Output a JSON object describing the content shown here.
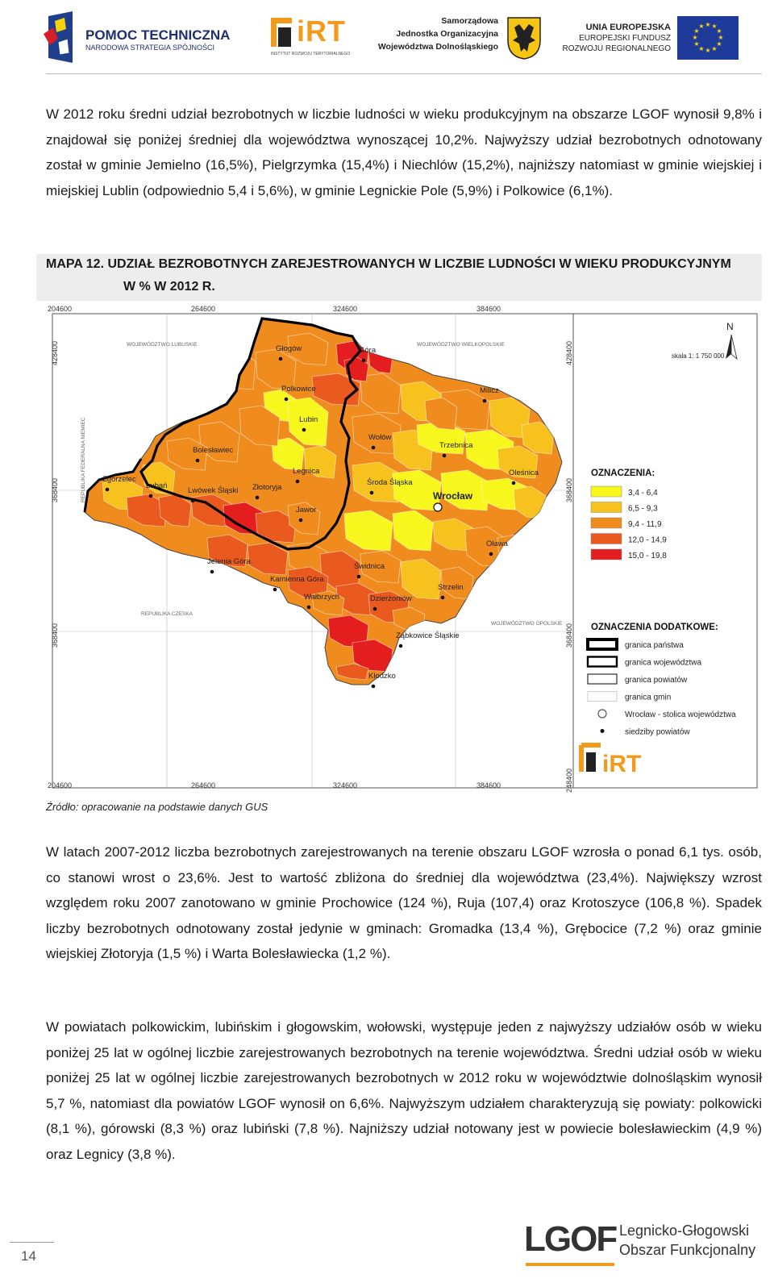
{
  "header": {
    "logo1_title": "POMOC TECHNICZNA",
    "logo1_sub": "NARODOWA STRATEGIA SPÓJNOŚCI",
    "logo2_text": "iRT",
    "logo2_sub": "INSTYTUT ROZWOJU TERYTORIALNEGO",
    "logo3_line1": "Samorządowa",
    "logo3_line2": "Jednostka Organizacyjna",
    "logo3_line3": "Województwa Dolnośląskiego",
    "logo4_line1": "UNIA EUROPEJSKA",
    "logo4_line2": "EUROPEJSKI FUNDUSZ",
    "logo4_line3": "ROZWOJU REGIONALNEGO"
  },
  "paragraph1": "W 2012 roku średni udział bezrobotnych w liczbie ludności w wieku produkcyjnym na obszarze LGOF wynosił 9,8% i znajdował się poniżej średniej dla województwa wynoszącej 10,2%. Najwyższy udział bezrobotnych odnotowany został w gminie Jemielno (16,5%), Pielgrzymka (15,4%) i Niechlów (15,2%), najniższy natomiast w gminie wiejskiej i miejskiej Lublin (odpowiednio 5,4 i 5,6%), w gminie Legnickie Pole (5,9%) i Polkowice (6,1%).",
  "map_title": {
    "line1": "MAPA 12. UDZIAŁ BEZROBOTNYCH ZAREJESTROWANYCH W LICZBIE LUDNOŚCI W WIEKU PRODUKCYJNYM",
    "line2": "W % W 2012 R."
  },
  "map": {
    "coords_top": [
      "204600",
      "264600",
      "324600",
      "384600"
    ],
    "coords_bottom": [
      "204600",
      "264600",
      "324600",
      "384600"
    ],
    "coords_left": [
      "428400",
      "368400",
      "368400"
    ],
    "coords_right": [
      "428400",
      "368400",
      "368400",
      "248400"
    ],
    "neighbors": [
      "WOJEWÓDZTWO LUBUSKIE",
      "WOJEWÓDZTWO WIELKOPOLSKIE",
      "REPUBLIKA FEDERALNA NIEMIEC",
      "REPUBLIKA CZESKA",
      "WOJEWÓDZTWO OPOLSKIE"
    ],
    "north": "N",
    "scale": "skala 1: 1 750 000",
    "legend_title": "OZNACZENIA:",
    "legend": [
      {
        "label": "3,4 - 6,4",
        "color": "#f7f71e"
      },
      {
        "label": "6,5 - 9,3",
        "color": "#f7c21e"
      },
      {
        "label": "9,4 - 11,9",
        "color": "#f08c1e"
      },
      {
        "label": "12,0 - 14,9",
        "color": "#ea5a1e"
      },
      {
        "label": "15,0 - 19,8",
        "color": "#e41e1e"
      }
    ],
    "legend2_title": "OZNACZENIA DODATKOWE:",
    "legend2": [
      "granica państwa",
      "granica województwa",
      "granica powiatów",
      "granica gmin",
      "Wrocław - stolica województwa",
      "siedziby powiatów"
    ],
    "cities": [
      "Głogów",
      "Góra",
      "Polkowice",
      "Milicz",
      "Lubin",
      "Wołów",
      "Trzebnica",
      "Bolesławiec",
      "Oleśnica",
      "Zgorzelec",
      "Legnica",
      "Lubań",
      "Lwówek Śląski",
      "Złotoryja",
      "Środa Śląska",
      "Wrocław",
      "Jawor",
      "Oława",
      "Jelenia Góra",
      "Świdnica",
      "Kamienna Góra",
      "Strzelin",
      "Wałbrzych",
      "Dzierżoniów",
      "Ząbkowice Śląskie",
      "Kłodzko"
    ],
    "irt_logo": "iRT"
  },
  "source": "Źródło: opracowanie na podstawie danych GUS",
  "paragraph2": "W latach 2007-2012 liczba bezrobotnych zarejestrowanych na terenie obszaru LGOF wzrosła o ponad 6,1 tys. osób, co stanowi wrost o 23,6%. Jest to wartość zbliżona do średniej dla województwa (23,4%). Największy wzrost względem roku 2007 zanotowano w gminie Prochowice (124 %), Ruja (107,4) oraz Krotoszyce (106,8 %). Spadek liczby bezrobotnych odnotowany został jedynie w gminach: Gromadka (13,4 %), Grębocice (7,2 %) oraz gminie wiejskiej Złotoryja (1,5 %) i Warta Bolesławiecka (1,2 %).",
  "paragraph3": "W powiatach polkowickim, lubińskim i głogowskim, wołowski, występuje jeden z najwyższy udziałów osób w wieku poniżej 25 lat w ogólnej liczbie zarejestrowanych bezrobotnych na terenie województwa. Średni udział osób w wieku poniżej 25 lat w ogólnej liczbie zarejestrowanych bezrobotnych w 2012 roku w województwie dolnośląskim wynosił 5,7 %, natomiast dla powiatów LGOF wynosił on 6,6%. Najwyższym udziałem charakteryzują się powiaty: polkowicki (8,1 %), górowski (8,3 %) oraz lubiński (7,8 %). Najniższy udział notowany jest w powiecie bolesławieckim (4,9 %) oraz Legnicy (3,8 %).",
  "footer": {
    "page_number": "14",
    "lgof_logo": "LGOF",
    "lgof_line1": "Legnicko-Głogowski",
    "lgof_line2": "Obszar Funkcjonalny"
  }
}
